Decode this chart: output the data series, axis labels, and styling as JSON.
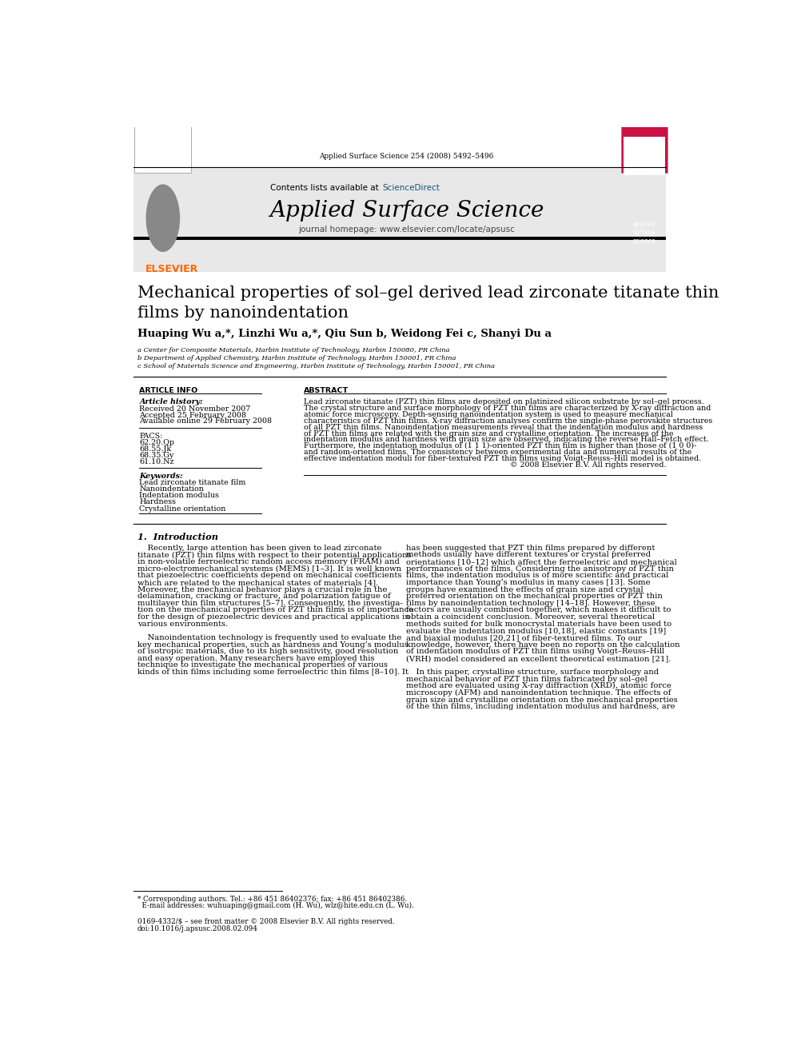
{
  "page_width": 9.92,
  "page_height": 13.23,
  "bg_color": "#ffffff",
  "journal_ref": "Applied Surface Science 254 (2008) 5492–5496",
  "header_bg": "#e8e8e8",
  "contents_text": "Contents lists available at ",
  "sciencedirect_text": "ScienceDirect",
  "sciencedirect_color": "#1a5276",
  "journal_name": "Applied Surface Science",
  "journal_homepage": "journal homepage: www.elsevier.com/locate/apsusc",
  "elsevier_color": "#ff6600",
  "black_bar_color": "#000000",
  "article_title_line1": "Mechanical properties of sol–gel derived lead zirconate titanate thin",
  "article_title_line2": "films by nanoindentation",
  "authors": "Huaping Wu a,*, Linzhi Wu a,*, Qiu Sun b, Weidong Fei c, Shanyi Du a",
  "affil_a": "a Center for Composite Materials, Harbin Institute of Technology, Harbin 150080, PR China",
  "affil_b": "b Department of Applied Chemistry, Harbin Institute of Technology, Harbin 150001, PR China",
  "affil_c": "c School of Materials Science and Engineering, Harbin Institute of Technology, Harbin 150001, PR China",
  "article_info_header": "ARTICLE INFO",
  "abstract_header": "ABSTRACT",
  "article_history_label": "Article history:",
  "received": "Received 20 November 2007",
  "accepted": "Accepted 25 February 2008",
  "available": "Available online 29 February 2008",
  "pacs_label": "PACS:",
  "pacs_codes": [
    "62.20.Qp",
    "68.55.Jk",
    "68.35.Gy",
    "61.10.Nz"
  ],
  "keywords_label": "Keywords:",
  "keywords": [
    "Lead zirconate titanate film",
    "Nanoindentation",
    "Indentation modulus",
    "Hardness",
    "Crystalline orientation"
  ],
  "copyright": "© 2008 Elsevier B.V. All rights reserved.",
  "section1_title": "1.  Introduction",
  "footnote_line1": "* Corresponding authors. Tel.: +86 451 86402376; fax: +86 451 86402386.",
  "footnote_line2": "  E-mail addresses: wuhuaping@gmail.com (H. Wu), wlz@hite.edu.cn (L. Wu).",
  "footer_line1": "0169-4332/$ – see front matter © 2008 Elsevier B.V. All rights reserved.",
  "footer_line2": "doi:10.1016/j.apsusc.2008.02.094"
}
